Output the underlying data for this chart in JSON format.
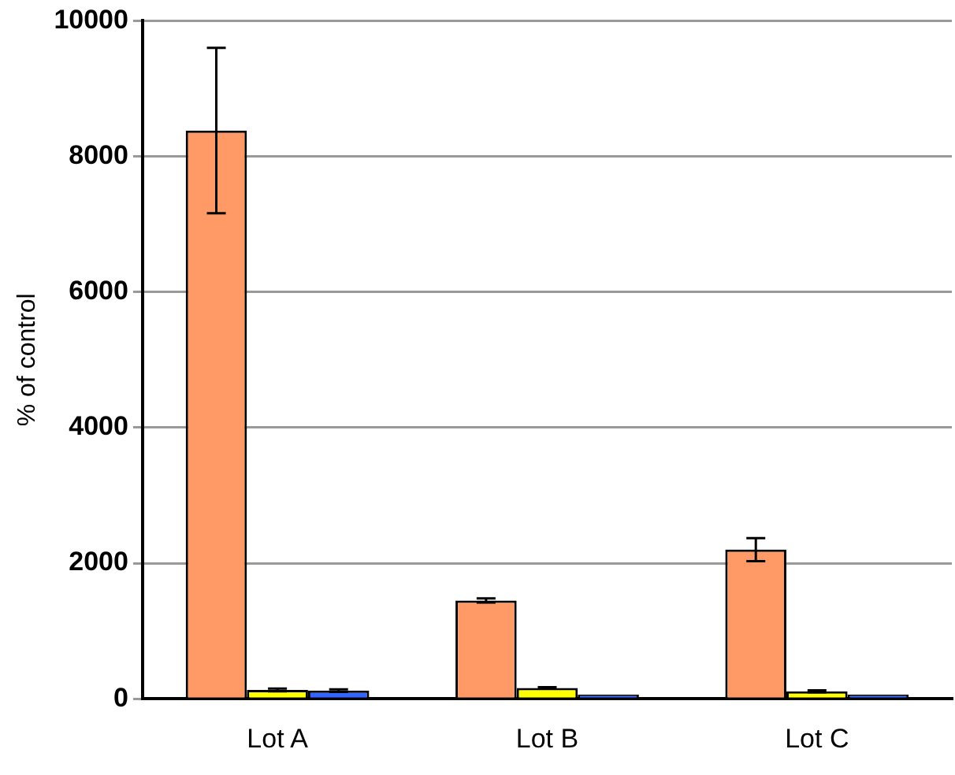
{
  "chart_data": {
    "type": "bar",
    "ylabel": "% of control",
    "categories": [
      "Lot A",
      "Lot B",
      "Lot C"
    ],
    "series": [
      {
        "color": "#ff9966",
        "values": [
          8380,
          1450,
          2200
        ],
        "errors": [
          1220,
          30,
          170
        ]
      },
      {
        "color": "#ffff00",
        "values": [
          130,
          160,
          110
        ],
        "errors": [
          20,
          10,
          15
        ]
      },
      {
        "color": "#3366ff",
        "values": [
          120,
          60,
          60
        ],
        "errors": [
          20,
          null,
          null
        ]
      }
    ],
    "ylim": [
      0,
      10000
    ],
    "yticks": [
      0,
      2000,
      4000,
      6000,
      8000,
      10000
    ],
    "grid": "y",
    "legend": false
  }
}
